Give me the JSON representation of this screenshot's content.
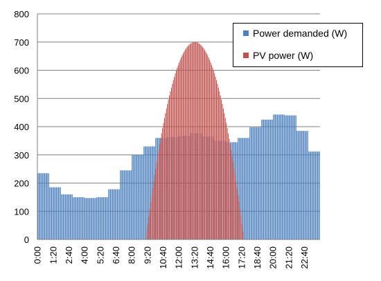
{
  "chart_data": {
    "type": "bar",
    "x_ticks": [
      "0:00",
      "1:20",
      "2:40",
      "4:00",
      "5:20",
      "6:40",
      "8:00",
      "9:20",
      "10:40",
      "12:00",
      "13:20",
      "14:40",
      "16:00",
      "17:20",
      "18:40",
      "20:00",
      "21:20",
      "22:40"
    ],
    "ylim": [
      0,
      800
    ],
    "yticks": [
      0,
      100,
      200,
      300,
      400,
      500,
      600,
      700,
      800
    ],
    "grid": true,
    "legend_position": "top-right",
    "series": [
      {
        "name": "Power demanded (W)",
        "color": "#4f81bd",
        "segments": [
          {
            "start": "0:00",
            "end": "1:00",
            "value": 235
          },
          {
            "start": "1:00",
            "end": "2:00",
            "value": 185
          },
          {
            "start": "2:00",
            "end": "3:00",
            "value": 160
          },
          {
            "start": "3:00",
            "end": "4:00",
            "value": 150
          },
          {
            "start": "4:00",
            "end": "5:00",
            "value": 147
          },
          {
            "start": "5:00",
            "end": "6:00",
            "value": 150
          },
          {
            "start": "6:00",
            "end": "7:00",
            "value": 178
          },
          {
            "start": "7:00",
            "end": "8:00",
            "value": 245
          },
          {
            "start": "8:00",
            "end": "9:00",
            "value": 300
          },
          {
            "start": "9:00",
            "end": "10:00",
            "value": 330
          },
          {
            "start": "10:00",
            "end": "11:00",
            "value": 360
          },
          {
            "start": "11:00",
            "end": "12:00",
            "value": 363
          },
          {
            "start": "12:00",
            "end": "13:00",
            "value": 367
          },
          {
            "start": "13:00",
            "end": "14:00",
            "value": 377
          },
          {
            "start": "14:00",
            "end": "15:00",
            "value": 365
          },
          {
            "start": "15:00",
            "end": "16:00",
            "value": 350
          },
          {
            "start": "16:00",
            "end": "17:00",
            "value": 345
          },
          {
            "start": "17:00",
            "end": "18:00",
            "value": 360
          },
          {
            "start": "18:00",
            "end": "19:00",
            "value": 398
          },
          {
            "start": "19:00",
            "end": "20:00",
            "value": 425
          },
          {
            "start": "20:00",
            "end": "21:00",
            "value": 443
          },
          {
            "start": "21:00",
            "end": "22:00",
            "value": 440
          },
          {
            "start": "22:00",
            "end": "23:00",
            "value": 385
          },
          {
            "start": "23:00",
            "end": "24:00",
            "value": 312
          }
        ]
      },
      {
        "name": "PV power (W)",
        "color": "#c0504d",
        "shape": "parabolic",
        "start": "9:10",
        "peak_time": "13:20",
        "peak_value": 700,
        "end": "17:30"
      }
    ]
  }
}
